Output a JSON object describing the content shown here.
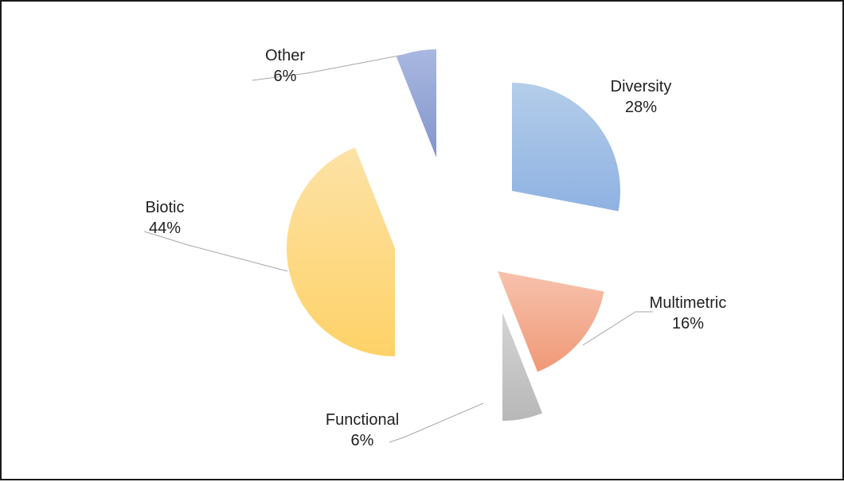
{
  "chart_data": {
    "type": "pie",
    "exploded": true,
    "start_angle_deg": 0,
    "direction": "clockwise",
    "gradient_fill": true,
    "legend": "none",
    "slices": [
      {
        "label": "Diversity",
        "value": 28,
        "value_label": "28%",
        "color_light": "#b4cde9",
        "color_dark": "#8fb2e3"
      },
      {
        "label": "Multimetric",
        "value": 16,
        "value_label": "16%",
        "color_light": "#f7c2ad",
        "color_dark": "#f09977"
      },
      {
        "label": "Functional",
        "value": 6,
        "value_label": "6%",
        "color_light": "#d4d4d4",
        "color_dark": "#b8b8b8"
      },
      {
        "label": "Biotic",
        "value": 44,
        "value_label": "44%",
        "color_light": "#fde2a6",
        "color_dark": "#fed268"
      },
      {
        "label": "Other",
        "value": 6,
        "value_label": "6%",
        "color_light": "#a9b8e0",
        "color_dark": "#8394cc"
      }
    ]
  }
}
